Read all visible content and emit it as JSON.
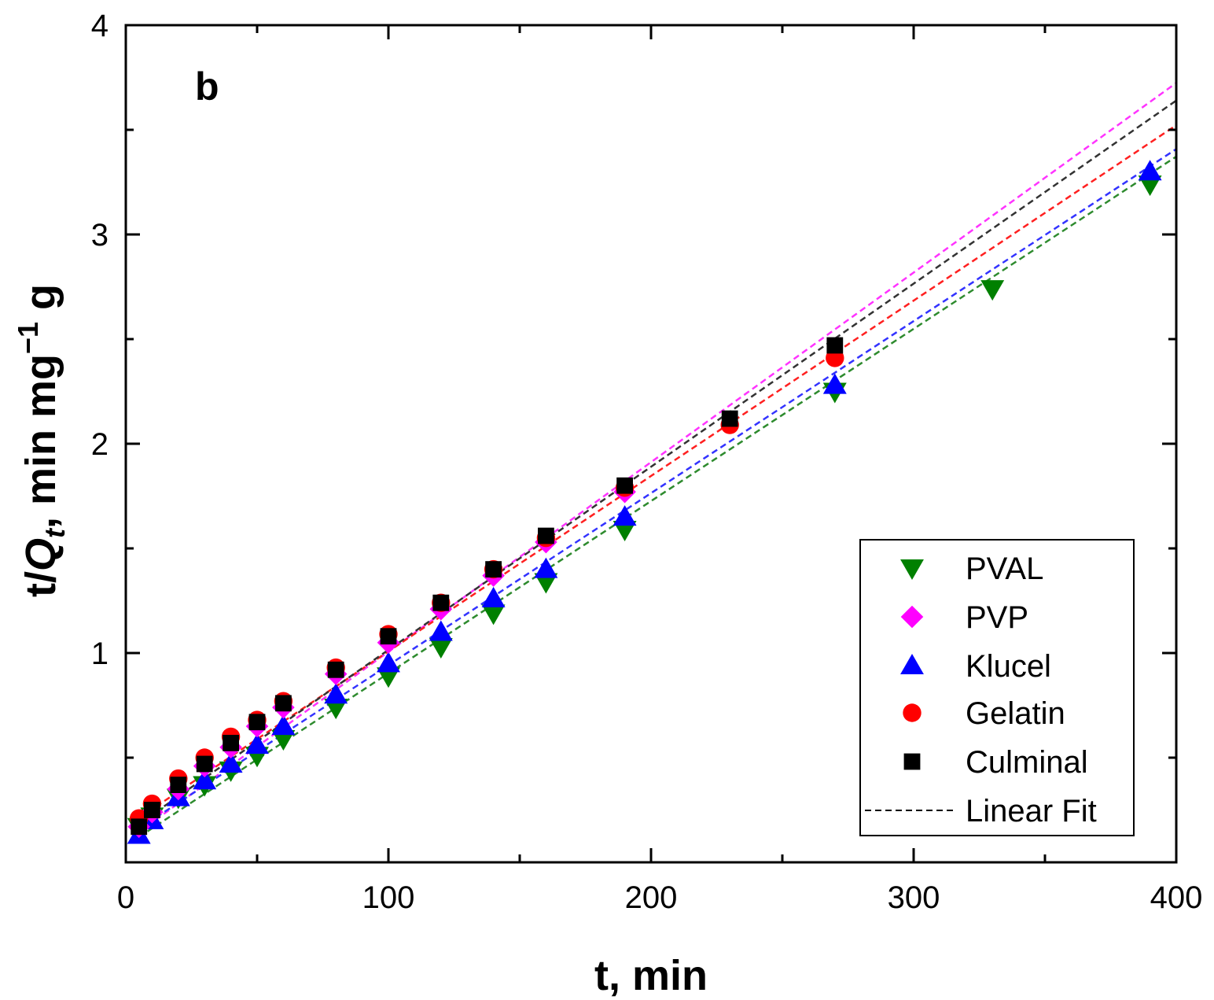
{
  "chart_data": {
    "type": "scatter",
    "panel_label": "b",
    "xlabel": "t, min",
    "ylabel": {
      "prefix": "t/",
      "italic": "Q",
      "subscript": "t",
      "suffix": ", min mg",
      "superscript": "−1",
      "tail": " g"
    },
    "xlim": [
      0,
      400
    ],
    "ylim": [
      0.15,
      4
    ],
    "x_ticks": [
      0,
      100,
      200,
      300,
      400
    ],
    "x_tick_labels": [
      "0",
      "100",
      "200",
      "300",
      "400"
    ],
    "y_ticks": [
      1,
      2,
      3,
      4
    ],
    "y_tick_labels": [
      "1",
      "2",
      "3",
      "4"
    ],
    "legend_position": "bottom-right",
    "legend_fit_label": "Linear Fit",
    "series": [
      {
        "name": "PVAL",
        "marker": "triangle-down",
        "color": "#008000",
        "fit_color": "#2e8b2e",
        "x": [
          5,
          10,
          20,
          30,
          40,
          50,
          60,
          80,
          100,
          120,
          140,
          160,
          190,
          270,
          330,
          390
        ],
        "y": [
          0.17,
          0.22,
          0.31,
          0.37,
          0.44,
          0.51,
          0.59,
          0.74,
          0.89,
          1.03,
          1.19,
          1.34,
          1.59,
          2.25,
          2.74,
          3.24
        ],
        "fit": {
          "slope": 0.00823,
          "intercept": 0.08
        }
      },
      {
        "name": "PVP",
        "marker": "diamond",
        "color": "#ff00ff",
        "fit_color": "#ff33ff",
        "x": [
          5,
          10,
          20,
          30,
          40,
          50,
          60,
          80,
          100,
          120,
          140,
          160,
          190
        ],
        "y": [
          0.17,
          0.24,
          0.35,
          0.46,
          0.55,
          0.65,
          0.74,
          0.9,
          1.05,
          1.21,
          1.37,
          1.53,
          1.77
        ],
        "fit": {
          "slope": 0.00906,
          "intercept": 0.1
        }
      },
      {
        "name": "Klucel",
        "marker": "triangle-up",
        "color": "#0000ff",
        "fit_color": "#3333ff",
        "x": [
          5,
          10,
          20,
          30,
          40,
          50,
          60,
          80,
          100,
          120,
          140,
          160,
          190,
          270,
          390
        ],
        "y": [
          0.13,
          0.2,
          0.31,
          0.39,
          0.47,
          0.56,
          0.65,
          0.8,
          0.95,
          1.1,
          1.26,
          1.4,
          1.65,
          2.28,
          3.3
        ],
        "fit": {
          "slope": 0.00822,
          "intercept": 0.12
        }
      },
      {
        "name": "Gelatin",
        "marker": "circle",
        "color": "#ff0000",
        "fit_color": "#ff2020",
        "x": [
          5,
          10,
          20,
          30,
          40,
          50,
          60,
          80,
          100,
          120,
          140,
          160,
          190,
          230,
          270
        ],
        "y": [
          0.21,
          0.28,
          0.4,
          0.5,
          0.6,
          0.68,
          0.77,
          0.93,
          1.09,
          1.24,
          1.4,
          1.55,
          1.79,
          2.09,
          2.41
        ],
        "fit": {
          "slope": 0.00838,
          "intercept": 0.17
        }
      },
      {
        "name": "Culminal",
        "marker": "square",
        "color": "#000000",
        "fit_color": "#333333",
        "x": [
          5,
          10,
          20,
          30,
          40,
          50,
          60,
          80,
          100,
          120,
          140,
          160,
          190,
          230,
          270
        ],
        "y": [
          0.17,
          0.25,
          0.37,
          0.47,
          0.57,
          0.67,
          0.76,
          0.92,
          1.08,
          1.24,
          1.4,
          1.56,
          1.8,
          2.12,
          2.47
        ],
        "fit": {
          "slope": 0.00875,
          "intercept": 0.14
        }
      }
    ]
  }
}
